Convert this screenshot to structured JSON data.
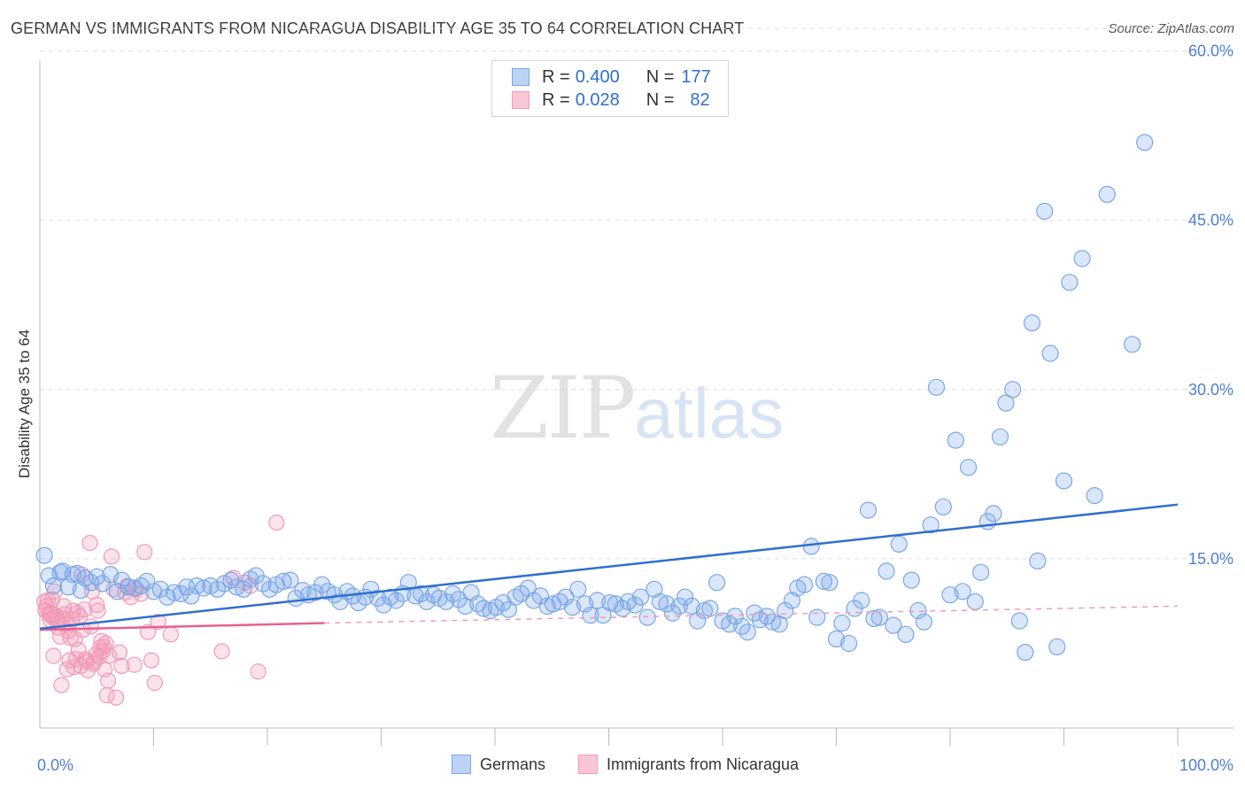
{
  "title": "GERMAN VS IMMIGRANTS FROM NICARAGUA DISABILITY AGE 35 TO 64 CORRELATION CHART",
  "source": "Source: ZipAtlas.com",
  "watermark": {
    "zip": "ZIP",
    "atlas": "atlas"
  },
  "legend_top": {
    "rows": [
      {
        "r_label": "R = ",
        "r_value": "0.400",
        "n_label": "N = ",
        "n_value": "177"
      },
      {
        "r_label": "R = ",
        "r_value": "0.028",
        "n_label": "N = ",
        "n_value": "82"
      }
    ]
  },
  "chart_data": {
    "type": "scatter",
    "title": "GERMAN VS IMMIGRANTS FROM NICARAGUA DISABILITY AGE 35 TO 64 CORRELATION CHART",
    "xlabel": "",
    "ylabel": "Disability Age 35 to 64",
    "xlim": [
      0,
      100
    ],
    "ylim": [
      0,
      62
    ],
    "x_tick_labels": [
      "0.0%",
      "100.0%"
    ],
    "y_ticks": [
      15,
      30,
      45,
      60
    ],
    "y_tick_labels": [
      "15.0%",
      "30.0%",
      "45.0%",
      "60.0%"
    ],
    "grid": true,
    "legend_placement": "bottom",
    "colors": {
      "germans": "#7aa7e8",
      "germans_line": "#2f6fce",
      "nicaragua": "#f29ab8",
      "nicaragua_line": "#e8608e"
    },
    "series": [
      {
        "name": "Germans",
        "trend": {
          "x": [
            0,
            100
          ],
          "y": [
            8.8,
            19.8
          ]
        },
        "points": [
          [
            0.4,
            15.3
          ],
          [
            0.8,
            13.5
          ],
          [
            1.2,
            12.6
          ],
          [
            1.8,
            13.8
          ],
          [
            2.0,
            13.9
          ],
          [
            2.5,
            12.5
          ],
          [
            2.9,
            13.6
          ],
          [
            3.3,
            13.7
          ],
          [
            3.6,
            12.2
          ],
          [
            4.0,
            13.3
          ],
          [
            4.5,
            12.9
          ],
          [
            5.0,
            13.4
          ],
          [
            5.5,
            12.8
          ],
          [
            6.2,
            13.6
          ],
          [
            6.8,
            12.1
          ],
          [
            7.2,
            13.1
          ],
          [
            7.8,
            12.5
          ],
          [
            8.3,
            12.4
          ],
          [
            8.9,
            12.6
          ],
          [
            9.4,
            13.0
          ],
          [
            10.0,
            12.1
          ],
          [
            10.6,
            12.3
          ],
          [
            11.2,
            11.6
          ],
          [
            11.8,
            12.0
          ],
          [
            12.4,
            11.9
          ],
          [
            12.9,
            12.5
          ],
          [
            13.3,
            11.7
          ],
          [
            13.8,
            12.6
          ],
          [
            14.4,
            12.4
          ],
          [
            15.0,
            12.6
          ],
          [
            15.6,
            12.3
          ],
          [
            16.2,
            12.8
          ],
          [
            16.8,
            13.1
          ],
          [
            17.3,
            12.5
          ],
          [
            17.9,
            12.3
          ],
          [
            18.5,
            13.2
          ],
          [
            19.0,
            13.5
          ],
          [
            19.6,
            12.8
          ],
          [
            20.2,
            12.3
          ],
          [
            20.8,
            12.7
          ],
          [
            21.4,
            13.0
          ],
          [
            22.0,
            13.1
          ],
          [
            22.5,
            11.5
          ],
          [
            23.1,
            12.2
          ],
          [
            23.6,
            11.8
          ],
          [
            24.2,
            12.0
          ],
          [
            24.8,
            12.7
          ],
          [
            25.3,
            12.1
          ],
          [
            25.9,
            11.8
          ],
          [
            26.4,
            11.2
          ],
          [
            27.0,
            12.1
          ],
          [
            27.5,
            11.7
          ],
          [
            28.0,
            11.1
          ],
          [
            28.6,
            11.6
          ],
          [
            29.1,
            12.3
          ],
          [
            29.7,
            11.5
          ],
          [
            30.2,
            10.9
          ],
          [
            30.8,
            11.6
          ],
          [
            31.3,
            11.3
          ],
          [
            31.9,
            11.9
          ],
          [
            32.4,
            12.9
          ],
          [
            33.0,
            11.7
          ],
          [
            33.5,
            11.9
          ],
          [
            34.0,
            11.2
          ],
          [
            34.6,
            11.8
          ],
          [
            35.1,
            11.5
          ],
          [
            35.7,
            11.2
          ],
          [
            36.3,
            11.9
          ],
          [
            36.8,
            11.4
          ],
          [
            37.4,
            10.8
          ],
          [
            37.9,
            12.0
          ],
          [
            38.5,
            11.0
          ],
          [
            39.0,
            10.6
          ],
          [
            39.6,
            10.4
          ],
          [
            40.1,
            10.7
          ],
          [
            40.7,
            11.1
          ],
          [
            41.2,
            10.5
          ],
          [
            41.8,
            11.6
          ],
          [
            42.3,
            11.9
          ],
          [
            42.9,
            12.4
          ],
          [
            43.4,
            11.3
          ],
          [
            44.0,
            11.7
          ],
          [
            44.6,
            10.8
          ],
          [
            45.1,
            11.0
          ],
          [
            45.7,
            11.2
          ],
          [
            46.2,
            11.6
          ],
          [
            46.8,
            10.7
          ],
          [
            47.3,
            12.3
          ],
          [
            47.9,
            11.0
          ],
          [
            48.4,
            10.0
          ],
          [
            49.0,
            11.3
          ],
          [
            49.5,
            10.0
          ],
          [
            50.1,
            11.1
          ],
          [
            50.6,
            11.0
          ],
          [
            51.2,
            10.6
          ],
          [
            51.7,
            11.2
          ],
          [
            52.3,
            10.9
          ],
          [
            52.8,
            11.6
          ],
          [
            53.4,
            9.8
          ],
          [
            54.0,
            12.3
          ],
          [
            54.5,
            11.2
          ],
          [
            55.1,
            11.0
          ],
          [
            55.6,
            10.2
          ],
          [
            56.2,
            10.8
          ],
          [
            56.7,
            11.6
          ],
          [
            57.3,
            10.8
          ],
          [
            57.8,
            9.5
          ],
          [
            58.4,
            10.4
          ],
          [
            58.9,
            10.6
          ],
          [
            59.5,
            12.9
          ],
          [
            60.0,
            9.5
          ],
          [
            60.6,
            9.2
          ],
          [
            61.1,
            9.9
          ],
          [
            61.7,
            9.0
          ],
          [
            62.2,
            8.5
          ],
          [
            62.8,
            10.2
          ],
          [
            63.3,
            9.6
          ],
          [
            63.9,
            9.9
          ],
          [
            64.4,
            9.4
          ],
          [
            65.0,
            9.2
          ],
          [
            65.5,
            10.4
          ],
          [
            66.1,
            11.3
          ],
          [
            66.6,
            12.4
          ],
          [
            67.2,
            12.7
          ],
          [
            67.8,
            16.1
          ],
          [
            68.3,
            9.8
          ],
          [
            68.9,
            13.0
          ],
          [
            69.4,
            12.9
          ],
          [
            70.0,
            7.9
          ],
          [
            70.5,
            9.3
          ],
          [
            71.1,
            7.5
          ],
          [
            71.6,
            10.6
          ],
          [
            72.2,
            11.3
          ],
          [
            72.8,
            19.3
          ],
          [
            73.3,
            9.7
          ],
          [
            73.8,
            9.8
          ],
          [
            74.4,
            13.9
          ],
          [
            75.0,
            9.1
          ],
          [
            75.5,
            16.3
          ],
          [
            76.1,
            8.3
          ],
          [
            76.6,
            13.1
          ],
          [
            77.2,
            10.4
          ],
          [
            77.7,
            9.4
          ],
          [
            78.3,
            18.0
          ],
          [
            78.8,
            30.2
          ],
          [
            79.4,
            19.6
          ],
          [
            80.0,
            11.8
          ],
          [
            80.5,
            25.5
          ],
          [
            81.1,
            12.1
          ],
          [
            81.6,
            23.1
          ],
          [
            82.2,
            11.2
          ],
          [
            82.7,
            13.8
          ],
          [
            83.3,
            18.3
          ],
          [
            83.8,
            19.0
          ],
          [
            84.4,
            25.8
          ],
          [
            84.9,
            28.8
          ],
          [
            85.5,
            30.0
          ],
          [
            86.1,
            9.5
          ],
          [
            86.6,
            6.7
          ],
          [
            87.2,
            35.9
          ],
          [
            87.7,
            14.8
          ],
          [
            88.3,
            45.8
          ],
          [
            88.8,
            33.2
          ],
          [
            89.4,
            7.2
          ],
          [
            90.0,
            21.9
          ],
          [
            90.5,
            39.5
          ],
          [
            91.6,
            41.6
          ],
          [
            92.7,
            20.6
          ],
          [
            93.8,
            47.3
          ],
          [
            96.0,
            34.0
          ],
          [
            97.1,
            51.9
          ]
        ]
      },
      {
        "name": "Immigrants from Nicaragua",
        "trend": {
          "x": [
            0,
            25
          ],
          "y": [
            8.7,
            9.3
          ]
        },
        "trend_extension": {
          "x": [
            25,
            100
          ],
          "y": [
            9.3,
            10.8
          ]
        },
        "points": [
          [
            0.4,
            11.2
          ],
          [
            0.5,
            10.4
          ],
          [
            0.6,
            10.8
          ],
          [
            0.7,
            11.3
          ],
          [
            0.8,
            10.1
          ],
          [
            0.9,
            9.6
          ],
          [
            1.0,
            10.2
          ],
          [
            1.1,
            11.4
          ],
          [
            1.2,
            9.8
          ],
          [
            1.3,
            12.1
          ],
          [
            1.4,
            10.0
          ],
          [
            1.5,
            9.6
          ],
          [
            1.6,
            8.9
          ],
          [
            1.7,
            9.4
          ],
          [
            1.8,
            8.1
          ],
          [
            1.9,
            3.8
          ],
          [
            2.0,
            9.7
          ],
          [
            2.1,
            10.8
          ],
          [
            2.2,
            10.1
          ],
          [
            2.3,
            9.2
          ],
          [
            2.4,
            5.2
          ],
          [
            2.5,
            8.6
          ],
          [
            2.6,
            6.0
          ],
          [
            2.7,
            8.0
          ],
          [
            2.8,
            9.6
          ],
          [
            2.9,
            10.4
          ],
          [
            3.0,
            5.4
          ],
          [
            3.1,
            7.9
          ],
          [
            3.2,
            6.1
          ],
          [
            3.3,
            10.2
          ],
          [
            3.4,
            6.9
          ],
          [
            3.5,
            9.9
          ],
          [
            3.6,
            5.5
          ],
          [
            3.7,
            13.6
          ],
          [
            3.8,
            8.7
          ],
          [
            3.9,
            10.5
          ],
          [
            4.0,
            6.1
          ],
          [
            4.1,
            5.9
          ],
          [
            4.2,
            5.1
          ],
          [
            4.4,
            16.4
          ],
          [
            4.5,
            9.0
          ],
          [
            4.6,
            12.1
          ],
          [
            4.7,
            5.7
          ],
          [
            4.8,
            5.9
          ],
          [
            4.9,
            6.5
          ],
          [
            5.0,
            10.9
          ],
          [
            5.1,
            10.4
          ],
          [
            5.2,
            6.3
          ],
          [
            5.3,
            7.1
          ],
          [
            5.4,
            7.7
          ],
          [
            5.5,
            6.8
          ],
          [
            5.6,
            7.2
          ],
          [
            5.7,
            5.2
          ],
          [
            5.8,
            7.5
          ],
          [
            5.9,
            2.9
          ],
          [
            6.0,
            4.2
          ],
          [
            6.1,
            6.4
          ],
          [
            6.3,
            15.2
          ],
          [
            6.5,
            12.3
          ],
          [
            6.7,
            2.7
          ],
          [
            7.0,
            6.7
          ],
          [
            7.2,
            5.5
          ],
          [
            7.5,
            12.0
          ],
          [
            7.7,
            12.6
          ],
          [
            8.0,
            11.6
          ],
          [
            8.3,
            5.6
          ],
          [
            8.5,
            12.3
          ],
          [
            8.9,
            11.9
          ],
          [
            9.2,
            15.6
          ],
          [
            9.5,
            8.5
          ],
          [
            9.8,
            6.0
          ],
          [
            10.1,
            4.0
          ],
          [
            10.4,
            9.4
          ],
          [
            11.5,
            8.3
          ],
          [
            16.0,
            6.8
          ],
          [
            17.0,
            13.3
          ],
          [
            18.0,
            12.9
          ],
          [
            18.5,
            12.6
          ],
          [
            19.2,
            5.0
          ],
          [
            20.8,
            18.2
          ],
          [
            0.9,
            10.0
          ],
          [
            1.2,
            6.4
          ]
        ]
      }
    ]
  },
  "legend_bottom": [
    {
      "label": "Germans"
    },
    {
      "label": "Immigrants from Nicaragua"
    }
  ]
}
